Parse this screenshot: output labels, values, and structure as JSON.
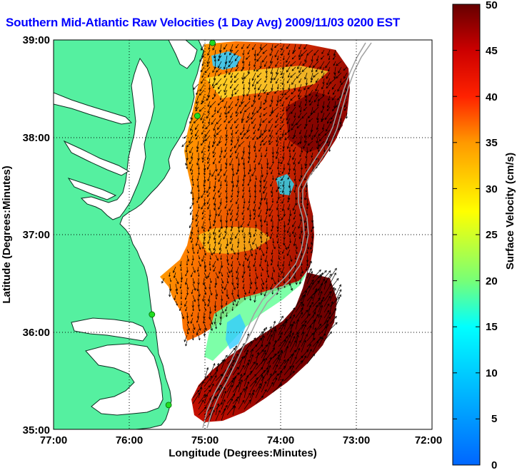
{
  "title": "Southern Mid-Atlantic Raw Velocities (1 Day Avg) 2009/11/03 0200 EST",
  "x_axis": {
    "label": "Longitude (Degrees:Minutes)",
    "ticks": [
      "77:00",
      "76:00",
      "75:00",
      "74:00",
      "73:00",
      "72:00"
    ]
  },
  "y_axis": {
    "label": "Latitude (Degrees:Minutes)",
    "ticks": [
      "39:00",
      "38:00",
      "37:00",
      "36:00",
      "35:00"
    ]
  },
  "colorbar": {
    "label": "Surface Velocity (cm/s)",
    "range": [
      0,
      50
    ],
    "ticks": [
      "50",
      "45",
      "40",
      "35",
      "30",
      "25",
      "20",
      "15",
      "10",
      "5",
      "0"
    ]
  },
  "extent": {
    "lon_min": -77,
    "lon_max": -72,
    "lat_min": 35,
    "lat_max": 39
  },
  "grid": "dotted",
  "colors": {
    "land": "#55f0a0",
    "title": "#0000ff",
    "vectors": "#000000",
    "bathymetry": "#a0a0a0",
    "stations": "#22dd22"
  },
  "stations": [
    {
      "lon": -74.9,
      "lat": 38.97
    },
    {
      "lon": -75.1,
      "lat": 38.22
    },
    {
      "lon": -75.7,
      "lat": 36.18
    },
    {
      "lon": -75.48,
      "lat": 35.25
    }
  ]
}
